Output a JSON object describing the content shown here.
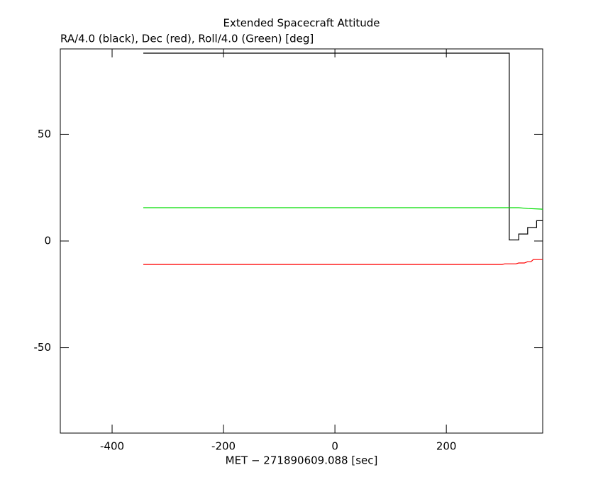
{
  "chart_data": {
    "type": "line",
    "title": "Extended Spacecraft Attitude",
    "subtitle": "RA/4.0 (black), Dec (red), Roll/4.0 (Green) [deg]",
    "x_label": "MET − 271890609.088 [sec]",
    "xlim": [
      -493,
      373
    ],
    "xticks": [
      -400,
      -200,
      0,
      200
    ],
    "ylim": [
      -90,
      90
    ],
    "yticks": [
      -50,
      0,
      50
    ],
    "series": [
      {
        "name": "RA/4.0",
        "color": "#000000",
        "x": [
          -344,
          313,
          313,
          330,
          330,
          346,
          346,
          362,
          362,
          373
        ],
        "values": [
          88,
          88,
          0.5,
          0.5,
          3.3,
          3.3,
          6.3,
          6.3,
          9.5,
          9.5
        ]
      },
      {
        "name": "Dec",
        "color": "#ff0000",
        "x": [
          -344,
          300,
          305,
          325,
          330,
          340,
          346,
          352,
          356,
          373
        ],
        "values": [
          -11,
          -11,
          -10.7,
          -10.7,
          -10.3,
          -10.3,
          -9.7,
          -9.7,
          -8.7,
          -8.7
        ]
      },
      {
        "name": "Roll/4.0",
        "color": "#00dd00",
        "x": [
          -344,
          330,
          346,
          373
        ],
        "values": [
          15.6,
          15.6,
          15.2,
          14.9
        ]
      }
    ]
  }
}
